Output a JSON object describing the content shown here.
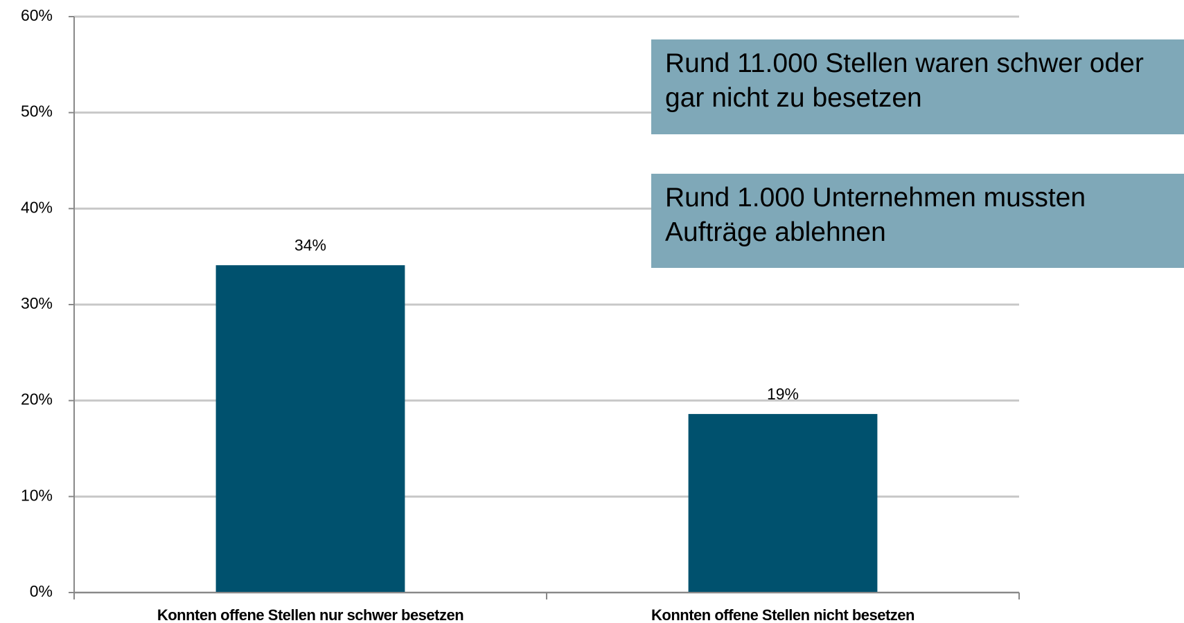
{
  "chart_data": {
    "type": "bar",
    "categories": [
      "Konnten offene Stellen nur schwer besetzen",
      "Konnten offene Stellen nicht besetzen"
    ],
    "values": [
      34.1,
      18.6
    ],
    "value_labels": [
      "34%",
      "19%"
    ],
    "color": "#00516e",
    "ylim": [
      0,
      60
    ],
    "yticks": [
      {
        "value": 0,
        "label": "0%"
      },
      {
        "value": 10,
        "label": "10%"
      },
      {
        "value": 20,
        "label": "20%"
      },
      {
        "value": 30,
        "label": "30%"
      },
      {
        "value": 40,
        "label": "40%"
      },
      {
        "value": 50,
        "label": "50%"
      },
      {
        "value": 60,
        "label": "60%"
      }
    ],
    "grid": true,
    "annotations": [
      "Rund 11.000 Stellen waren schwer oder gar nicht zu besetzen",
      "Rund 1.000 Unternehmen mussten Aufträge ablehnen"
    ]
  }
}
